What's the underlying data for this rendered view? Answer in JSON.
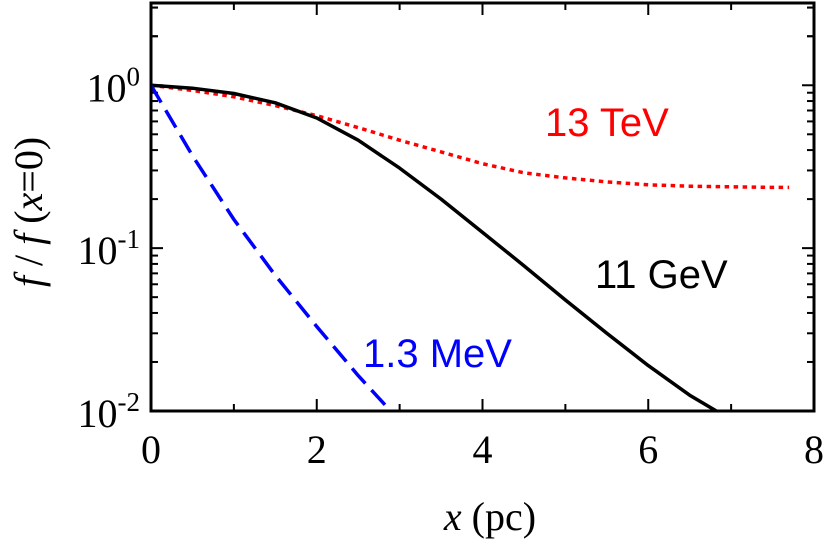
{
  "chart_data": {
    "type": "line",
    "xlabel": {
      "var": "x",
      "rest": " (pc)"
    },
    "ylabel": {
      "f1": "f",
      "sep": " / ",
      "f2": "f",
      "open": " (",
      "x": "x",
      "eq": "=0)"
    },
    "x_ticks": [
      "0",
      "2",
      "4",
      "6",
      "8"
    ],
    "y_ticks": [
      {
        "base": "10",
        "exp": "0"
      },
      {
        "base": "10",
        "exp": "-1"
      },
      {
        "base": "10",
        "exp": "-2"
      }
    ],
    "xlim": [
      0,
      8
    ],
    "ylim": [
      0.01,
      3.2
    ],
    "yscale": "log",
    "grid": false,
    "series": [
      {
        "name": "13 TeV",
        "color": "#ff0000",
        "style": "dotted",
        "x": [
          0,
          0.5,
          1,
          1.5,
          2,
          2.5,
          3,
          3.5,
          4,
          4.5,
          5,
          5.5,
          6,
          6.5,
          7,
          7.5,
          7.7
        ],
        "y": [
          1.0,
          0.93,
          0.85,
          0.75,
          0.65,
          0.55,
          0.46,
          0.39,
          0.33,
          0.29,
          0.27,
          0.255,
          0.245,
          0.24,
          0.238,
          0.236,
          0.236
        ]
      },
      {
        "name": "11 GeV",
        "color": "#000000",
        "style": "solid",
        "x": [
          0,
          0.5,
          1,
          1.5,
          2,
          2.5,
          3,
          3.5,
          4,
          4.5,
          5,
          5.5,
          6,
          6.5,
          6.85
        ],
        "y": [
          1.0,
          0.96,
          0.89,
          0.78,
          0.63,
          0.46,
          0.31,
          0.2,
          0.125,
          0.078,
          0.048,
          0.03,
          0.019,
          0.0125,
          0.0098
        ]
      },
      {
        "name": "1.3 MeV",
        "color": "#0000ff",
        "style": "dashed",
        "x": [
          0,
          0.5,
          1,
          1.5,
          2,
          2.5,
          2.9
        ],
        "y": [
          1.0,
          0.37,
          0.15,
          0.068,
          0.033,
          0.0165,
          0.0099
        ]
      }
    ]
  }
}
